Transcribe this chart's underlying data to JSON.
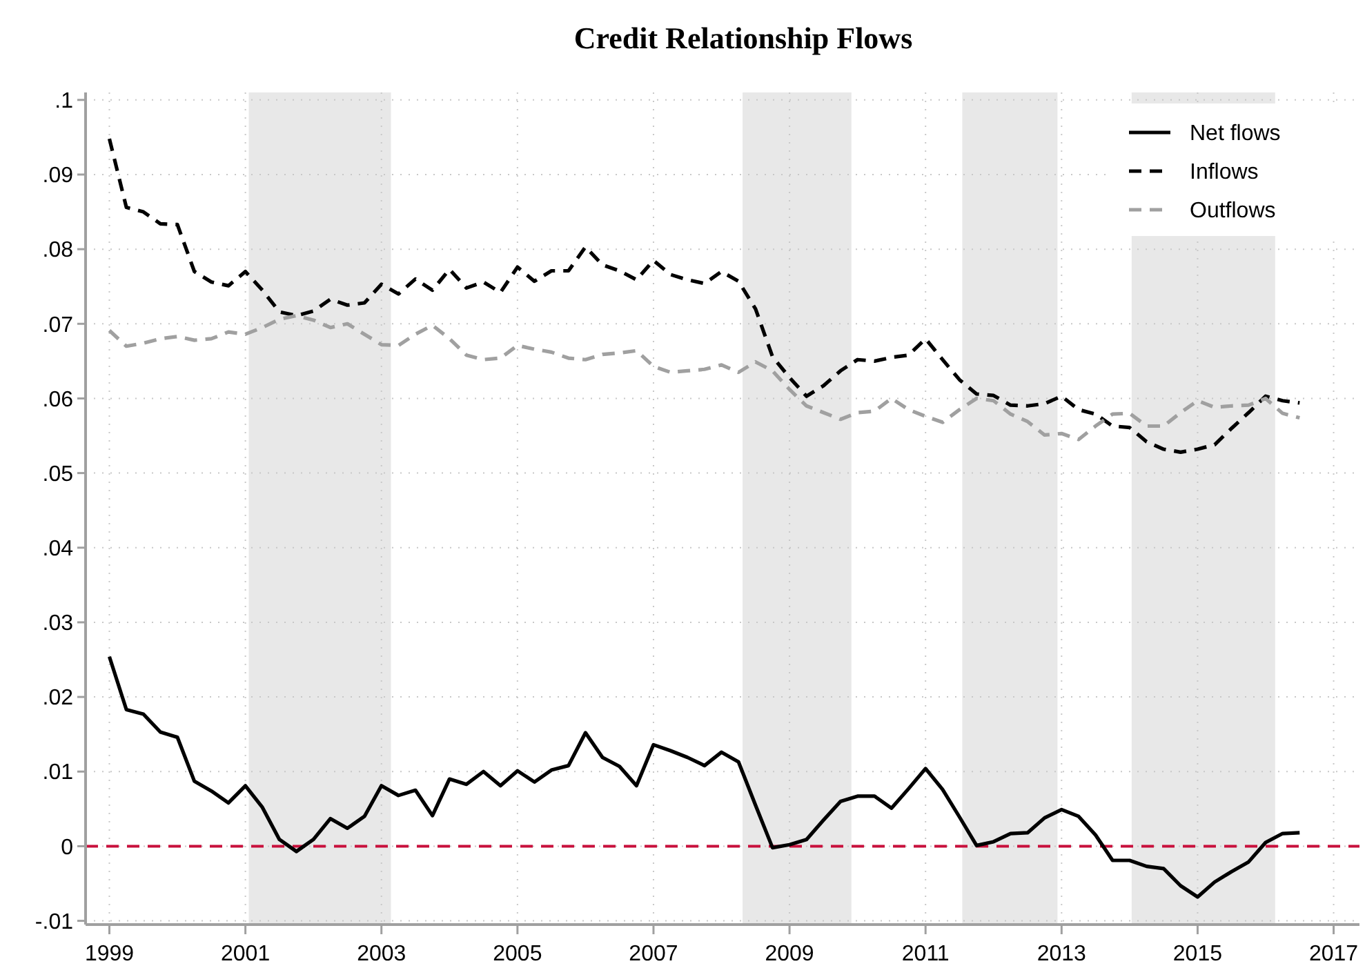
{
  "chart_data": {
    "type": "line",
    "title": "Credit Relationship Flows",
    "x": [
      1999,
      1999.25,
      1999.5,
      1999.75,
      2000,
      2000.25,
      2000.5,
      2000.75,
      2001,
      2001.25,
      2001.5,
      2001.75,
      2002,
      2002.25,
      2002.5,
      2002.75,
      2003,
      2003.25,
      2003.5,
      2003.75,
      2004,
      2004.25,
      2004.5,
      2004.75,
      2005,
      2005.25,
      2005.5,
      2005.75,
      2006,
      2006.25,
      2006.5,
      2006.75,
      2007,
      2007.25,
      2007.5,
      2007.75,
      2008,
      2008.25,
      2008.5,
      2008.75,
      2009,
      2009.25,
      2009.5,
      2009.75,
      2010,
      2010.25,
      2010.5,
      2010.75,
      2011,
      2011.25,
      2011.5,
      2011.75,
      2012,
      2012.25,
      2012.5,
      2012.75,
      2013,
      2013.25,
      2013.5,
      2013.75,
      2014,
      2014.25,
      2014.5,
      2014.75,
      2015,
      2015.25,
      2015.5,
      2015.75,
      2016,
      2016.25,
      2016.5
    ],
    "series": [
      {
        "name": "Net flows",
        "color": "#000000",
        "line_style": "solid",
        "values": [
          0.0254,
          0.0183,
          0.0177,
          0.0153,
          0.0146,
          0.0087,
          0.0074,
          0.0058,
          0.0081,
          0.0052,
          0.0009,
          -0.0007,
          0.0009,
          0.0037,
          0.0024,
          0.004,
          0.0081,
          0.0068,
          0.0075,
          0.0041,
          0.009,
          0.0083,
          0.01,
          0.0081,
          0.0101,
          0.0086,
          0.0102,
          0.0108,
          0.0152,
          0.0119,
          0.0107,
          0.0081,
          0.0136,
          0.0128,
          0.0119,
          0.0108,
          0.0126,
          0.0113,
          0.0055,
          -0.0002,
          0.0002,
          0.0009,
          0.0035,
          0.006,
          0.0067,
          0.0067,
          0.0051,
          0.0077,
          0.0104,
          0.0076,
          0.0039,
          0.0001,
          0.0006,
          0.0017,
          0.0018,
          0.0038,
          0.0049,
          0.004,
          0.0015,
          -0.0019,
          -0.0019,
          -0.0027,
          -0.003,
          -0.0053,
          -0.0068,
          -0.0048,
          -0.0034,
          -0.0021,
          0.0005,
          0.0017,
          0.0018
        ]
      },
      {
        "name": "Inflows",
        "color": "#000000",
        "line_style": "dashed",
        "values": [
          0.0948,
          0.0856,
          0.085,
          0.0834,
          0.0833,
          0.077,
          0.0756,
          0.0751,
          0.077,
          0.0745,
          0.0716,
          0.0711,
          0.0717,
          0.0733,
          0.0725,
          0.0728,
          0.0753,
          0.074,
          0.076,
          0.0745,
          0.0773,
          0.0748,
          0.0756,
          0.0742,
          0.0776,
          0.0757,
          0.0771,
          0.0771,
          0.0803,
          0.0779,
          0.0771,
          0.0759,
          0.0785,
          0.0766,
          0.0759,
          0.0754,
          0.077,
          0.0757,
          0.072,
          0.0656,
          0.0628,
          0.0603,
          0.0617,
          0.0637,
          0.0652,
          0.065,
          0.0655,
          0.0658,
          0.068,
          0.0652,
          0.0625,
          0.0606,
          0.0604,
          0.0591,
          0.059,
          0.0593,
          0.0603,
          0.0585,
          0.0579,
          0.0563,
          0.0561,
          0.0542,
          0.0532,
          0.0528,
          0.0532,
          0.0538,
          0.056,
          0.0581,
          0.0603,
          0.0597,
          0.0594
        ]
      },
      {
        "name": "Outflows",
        "color": "#a0a0a0",
        "line_style": "dashed",
        "values": [
          0.0691,
          0.067,
          0.0674,
          0.068,
          0.0683,
          0.0678,
          0.068,
          0.0689,
          0.0686,
          0.0695,
          0.0706,
          0.0711,
          0.0705,
          0.0695,
          0.07,
          0.0686,
          0.0672,
          0.0671,
          0.0686,
          0.0698,
          0.068,
          0.0658,
          0.0652,
          0.0654,
          0.0671,
          0.0666,
          0.0662,
          0.0654,
          0.0652,
          0.0659,
          0.0661,
          0.0664,
          0.0643,
          0.0635,
          0.0637,
          0.0639,
          0.0645,
          0.0635,
          0.0649,
          0.0637,
          0.0612,
          0.059,
          0.0581,
          0.0572,
          0.0581,
          0.0583,
          0.06,
          0.0585,
          0.0576,
          0.0568,
          0.0585,
          0.06,
          0.0597,
          0.0579,
          0.0569,
          0.0551,
          0.0553,
          0.0545,
          0.0563,
          0.0579,
          0.058,
          0.0563,
          0.0563,
          0.0581,
          0.0597,
          0.0588,
          0.059,
          0.0591,
          0.06,
          0.058,
          0.0574
        ]
      }
    ],
    "xlim": [
      1998.65,
      2017.38
    ],
    "xticks": [
      1999,
      2001,
      2003,
      2005,
      2007,
      2009,
      2011,
      2013,
      2015,
      2017
    ],
    "ylim": [
      -0.0105,
      0.101
    ],
    "yticks": [
      {
        "value": -0.01,
        "label": "-.01"
      },
      0,
      {
        "value": 0.01,
        "label": ".01"
      },
      {
        "value": 0.02,
        "label": ".02"
      },
      {
        "value": 0.03,
        "label": ".03"
      },
      {
        "value": 0.04,
        "label": ".04"
      },
      {
        "value": 0.05,
        "label": ".05"
      },
      {
        "value": 0.06,
        "label": ".06"
      },
      {
        "value": 0.07,
        "label": ".07"
      },
      {
        "value": 0.08,
        "label": ".08"
      },
      {
        "value": 0.09,
        "label": ".09"
      },
      {
        "value": 0.1,
        "label": ".1"
      }
    ],
    "ref_lines": [
      {
        "axis": "y",
        "value": 0,
        "color": "#c8103c",
        "line_style": "dashed"
      }
    ],
    "bands": [
      {
        "axis": "x",
        "from": 2001.05,
        "to": 2003.14,
        "color": "#e8e8e8"
      },
      {
        "axis": "x",
        "from": 2008.31,
        "to": 2009.91,
        "color": "#e8e8e8"
      },
      {
        "axis": "x",
        "from": 2011.54,
        "to": 2012.94,
        "color": "#e8e8e8"
      },
      {
        "axis": "x",
        "from": 2014.03,
        "to": 2016.14,
        "color": "#e8e8e8"
      }
    ],
    "grid": true,
    "legend": "top right",
    "marker": "none"
  }
}
